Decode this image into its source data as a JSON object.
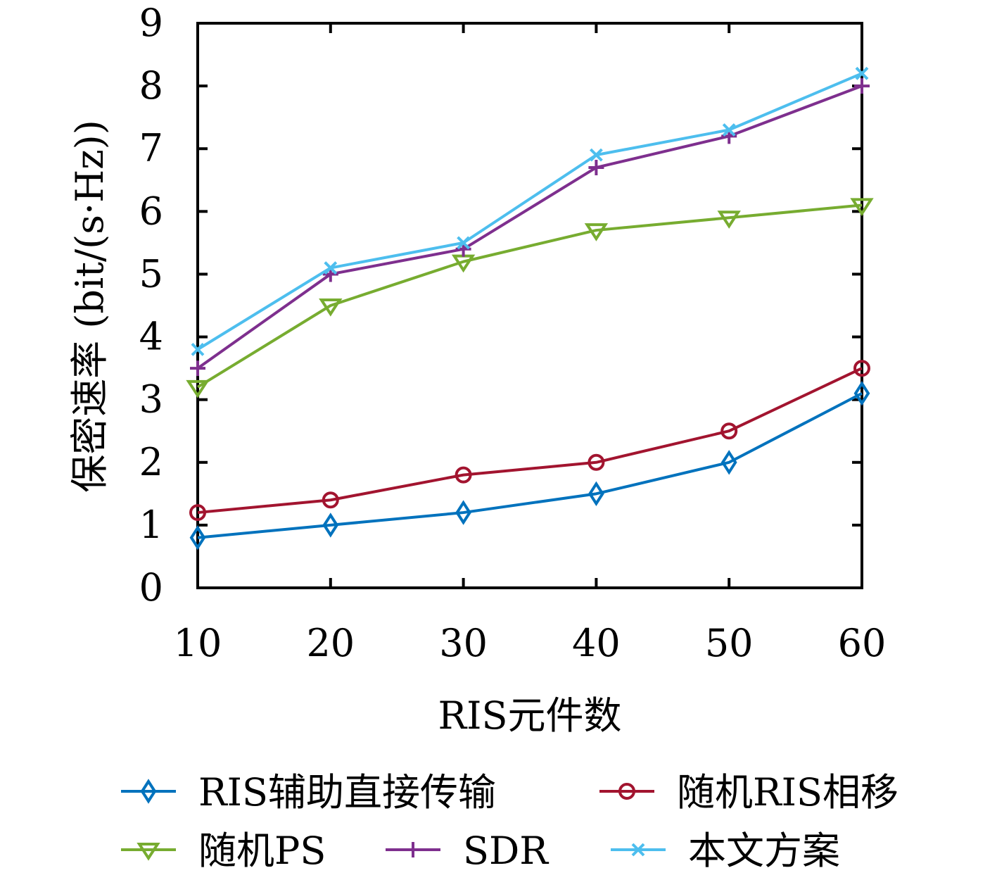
{
  "chart_data": {
    "type": "line",
    "title": "",
    "xlabel": "RIS元件数",
    "ylabel": "保密速率 (bit/(s·Hz))",
    "x": [
      10,
      20,
      30,
      40,
      50,
      60
    ],
    "xlim": [
      10,
      60
    ],
    "ylim": [
      0,
      9
    ],
    "xticks": [
      "10",
      "20",
      "30",
      "40",
      "50",
      "60"
    ],
    "yticks": [
      "0",
      "1",
      "2",
      "3",
      "4",
      "5",
      "6",
      "7",
      "8",
      "9"
    ],
    "grid": false,
    "legend_position": "bottom",
    "series": [
      {
        "name": "RIS辅助直接传输",
        "color": "#0072BD",
        "marker": "diamond",
        "values": [
          0.8,
          1.0,
          1.2,
          1.5,
          2.0,
          3.1
        ]
      },
      {
        "name": "随机RIS相移",
        "color": "#A2142F",
        "marker": "circle",
        "values": [
          1.2,
          1.4,
          1.8,
          2.0,
          2.5,
          3.5
        ]
      },
      {
        "name": "随机PS",
        "color": "#77AC30",
        "marker": "triangle-down",
        "values": [
          3.2,
          4.5,
          5.2,
          5.7,
          5.9,
          6.1
        ]
      },
      {
        "name": "SDR",
        "color": "#7E2F8E",
        "marker": "plus",
        "values": [
          3.5,
          5.0,
          5.4,
          6.7,
          7.2,
          8.0
        ]
      },
      {
        "name": "本文方案",
        "color": "#4DBEEE",
        "marker": "x",
        "values": [
          3.8,
          5.1,
          5.5,
          6.9,
          7.3,
          8.2
        ]
      }
    ]
  }
}
